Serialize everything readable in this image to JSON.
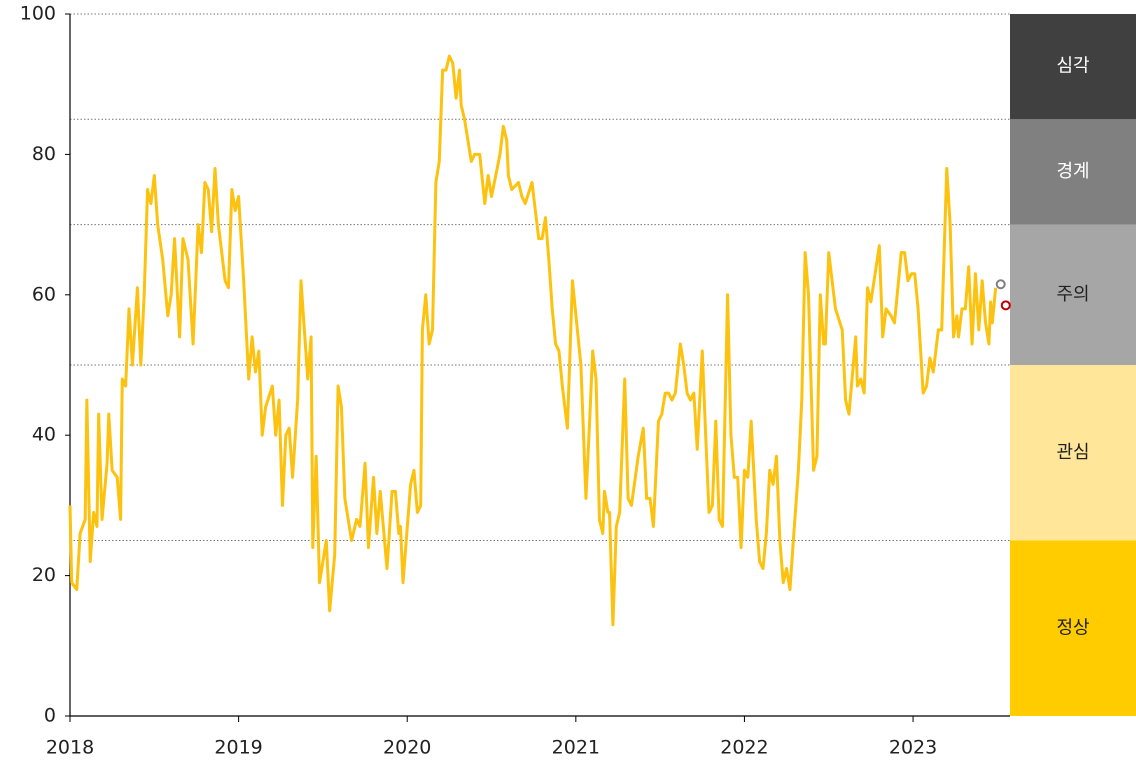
{
  "chart_data": {
    "type": "line",
    "xlim": [
      2018,
      2023.575
    ],
    "xticks": [
      2018,
      2019,
      2020,
      2021,
      2022,
      2023
    ],
    "ylim": [
      0,
      100
    ],
    "yticks": [
      0,
      20,
      40,
      60,
      80,
      100
    ],
    "x": [
      2018.0,
      2018.01,
      2018.04,
      2018.06,
      2018.09,
      2018.1,
      2018.12,
      2018.14,
      2018.16,
      2018.17,
      2018.19,
      2018.22,
      2018.23,
      2018.25,
      2018.28,
      2018.3,
      2018.31,
      2018.33,
      2018.35,
      2018.37,
      2018.4,
      2018.42,
      2018.44,
      2018.46,
      2018.48,
      2018.5,
      2018.52,
      2018.55,
      2018.58,
      2018.6,
      2018.62,
      2018.65,
      2018.67,
      2018.7,
      2018.73,
      2018.76,
      2018.78,
      2018.8,
      2018.82,
      2018.84,
      2018.86,
      2018.88,
      2018.92,
      2018.94,
      2018.96,
      2018.98,
      2019.0,
      2019.03,
      2019.06,
      2019.08,
      2019.1,
      2019.12,
      2019.14,
      2019.16,
      2019.2,
      2019.22,
      2019.24,
      2019.26,
      2019.28,
      2019.3,
      2019.32,
      2019.35,
      2019.37,
      2019.39,
      2019.41,
      2019.43,
      2019.44,
      2019.46,
      2019.48,
      2019.52,
      2019.54,
      2019.57,
      2019.59,
      2019.61,
      2019.63,
      2019.67,
      2019.7,
      2019.72,
      2019.75,
      2019.77,
      2019.8,
      2019.82,
      2019.84,
      2019.88,
      2019.91,
      2019.93,
      2019.95,
      2019.96,
      2019.975,
      2020.02,
      2020.04,
      2020.06,
      2020.08,
      2020.09,
      2020.11,
      2020.13,
      2020.15,
      2020.17,
      2020.19,
      2020.21,
      2020.23,
      2020.25,
      2020.27,
      2020.29,
      2020.31,
      2020.32,
      2020.34,
      2020.38,
      2020.4,
      2020.43,
      2020.46,
      2020.48,
      2020.5,
      2020.55,
      2020.57,
      2020.59,
      2020.6,
      2020.62,
      2020.66,
      2020.68,
      2020.7,
      2020.74,
      2020.76,
      2020.78,
      2020.8,
      2020.82,
      2020.84,
      2020.86,
      2020.88,
      2020.9,
      2020.92,
      2020.95,
      2020.98,
      2021.03,
      2021.06,
      2021.08,
      2021.1,
      2021.12,
      2021.14,
      2021.16,
      2021.17,
      2021.19,
      2021.2,
      2021.22,
      2021.24,
      2021.26,
      2021.29,
      2021.31,
      2021.33,
      2021.37,
      2021.4,
      2021.42,
      2021.44,
      2021.46,
      2021.49,
      2021.51,
      2021.53,
      2021.55,
      2021.57,
      2021.59,
      2021.62,
      2021.64,
      2021.66,
      2021.68,
      2021.7,
      2021.72,
      2021.75,
      2021.77,
      2021.79,
      2021.81,
      2021.83,
      2021.85,
      2021.87,
      2021.9,
      2021.92,
      2021.94,
      2021.96,
      2021.98,
      2022.0,
      2022.02,
      2022.04,
      2022.07,
      2022.09,
      2022.11,
      2022.13,
      2022.15,
      2022.17,
      2022.19,
      2022.21,
      2022.23,
      2022.25,
      2022.27,
      2022.29,
      2022.32,
      2022.34,
      2022.36,
      2022.38,
      2022.41,
      2022.43,
      2022.45,
      2022.47,
      2022.48,
      2022.5,
      2022.52,
      2022.54,
      2022.58,
      2022.6,
      2022.62,
      2022.66,
      2022.67,
      2022.69,
      2022.71,
      2022.73,
      2022.75,
      2022.8,
      2022.82,
      2022.84,
      2022.87,
      2022.89,
      2022.93,
      2022.95,
      2022.97,
      2022.99,
      2023.01,
      2023.03,
      2023.06,
      2023.08,
      2023.1,
      2023.12,
      2023.15,
      2023.17,
      2023.2,
      2023.22,
      2023.24,
      2023.26,
      2023.27,
      2023.29,
      2023.31,
      2023.33,
      2023.35,
      2023.37,
      2023.39,
      2023.41,
      2023.43,
      2023.45,
      2023.46,
      2023.47,
      2023.49
    ],
    "series": [
      {
        "color": "#fcc20f",
        "values": [
          30,
          19,
          18,
          26,
          28,
          45,
          22,
          29,
          27,
          43,
          28,
          36,
          43,
          35,
          34,
          28,
          48,
          47,
          58,
          50,
          61,
          50,
          60,
          75,
          73,
          77,
          70,
          65,
          57,
          60,
          68,
          54,
          68,
          65,
          53,
          70,
          66,
          76,
          75,
          69,
          78,
          70,
          62,
          61,
          75,
          72,
          74,
          62,
          48,
          54,
          49,
          52,
          40,
          44,
          47,
          40,
          45,
          30,
          40,
          41,
          34,
          45,
          62,
          55,
          48,
          54,
          24,
          37,
          19,
          25,
          15,
          23,
          47,
          44,
          31,
          25,
          28,
          27,
          36,
          24,
          34,
          26,
          32,
          21,
          32,
          32,
          26,
          27,
          19,
          33,
          35,
          29,
          30,
          55,
          60,
          53,
          55,
          76,
          79,
          92,
          92,
          94,
          93,
          88,
          92,
          87,
          85,
          79,
          80,
          80,
          73,
          77,
          74,
          80,
          84,
          82,
          77,
          75,
          76,
          74,
          73,
          76,
          72,
          68,
          68,
          71,
          65,
          58,
          53,
          52,
          47,
          41,
          62,
          50,
          31,
          41,
          52,
          48,
          28,
          26,
          32,
          29,
          29,
          13,
          27,
          29,
          48,
          31,
          30,
          37,
          41,
          31,
          31,
          27,
          42,
          43,
          46,
          46,
          45,
          46,
          53,
          50,
          46,
          45,
          46,
          38,
          52,
          40,
          29,
          30,
          42,
          28,
          27,
          60,
          40,
          34,
          34,
          24,
          35,
          34,
          42,
          28,
          22,
          21,
          26,
          35,
          33,
          37,
          25,
          19,
          21,
          18,
          25,
          35,
          45,
          66,
          60,
          35,
          37,
          60,
          53,
          53,
          66,
          62,
          58,
          55,
          45,
          43,
          54,
          47,
          48,
          46,
          61,
          59,
          67,
          54,
          58,
          57,
          56,
          66,
          66,
          62,
          63,
          63,
          58,
          46,
          47,
          51,
          49,
          55,
          55,
          78,
          70,
          54,
          57,
          54,
          58,
          58,
          64,
          53,
          63,
          55,
          62,
          56,
          53,
          59,
          56,
          61
        ]
      }
    ],
    "points": [
      {
        "x": 2023.52,
        "y": 61.5,
        "color": "#7f7f7f"
      },
      {
        "x": 2023.55,
        "y": 58.5,
        "color": "#c00000"
      }
    ],
    "bands": [
      {
        "label": "정상",
        "from": 0,
        "to": 25,
        "color": "#ffcc00",
        "text_color": "#222222"
      },
      {
        "label": "관심",
        "from": 25,
        "to": 50,
        "color": "#ffe699",
        "text_color": "#222222"
      },
      {
        "label": "주의",
        "from": 50,
        "to": 70,
        "color": "#a6a6a6",
        "text_color": "#222222"
      },
      {
        "label": "경계",
        "from": 70,
        "to": 85,
        "color": "#808080",
        "text_color": "#ffffff"
      },
      {
        "label": "심각",
        "from": 85,
        "to": 100,
        "color": "#404040",
        "text_color": "#ffffff"
      }
    ]
  }
}
